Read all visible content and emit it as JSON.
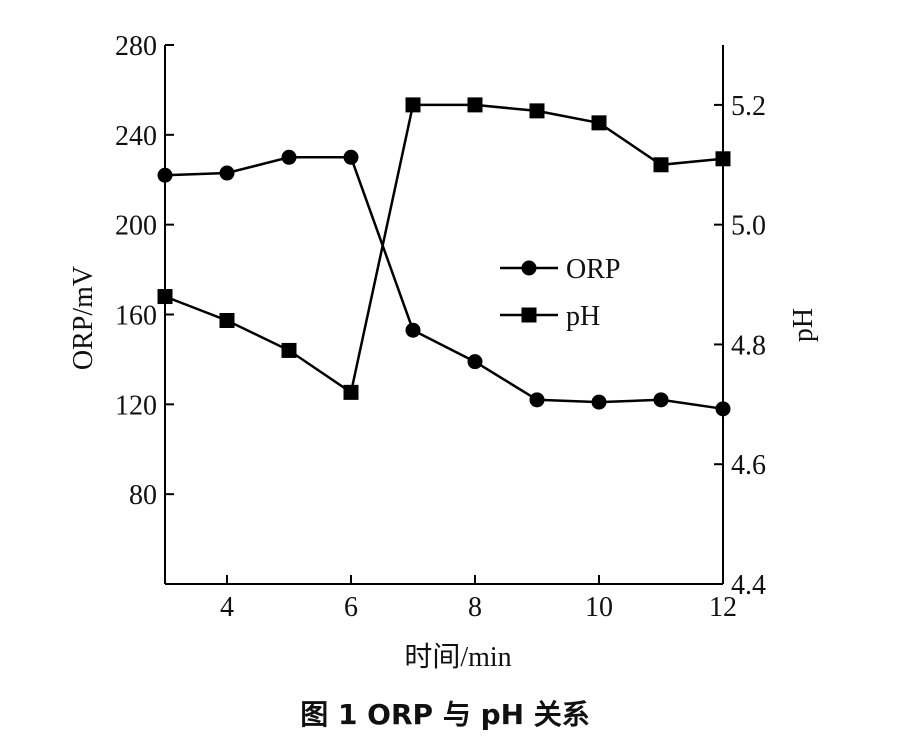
{
  "chart_data": {
    "type": "line",
    "caption": "图 1   ORP 与 pH 关系",
    "xlabel": "时间/min",
    "ylabel_left": "ORP/mV",
    "ylabel_right": "pH",
    "xlim": [
      3,
      12
    ],
    "ylim_left": [
      40,
      280
    ],
    "ylim_right": [
      4.4,
      5.3
    ],
    "x_ticks": [
      4,
      6,
      8,
      10,
      12
    ],
    "y_ticks_left": [
      80,
      120,
      160,
      200,
      240,
      280
    ],
    "y_ticks_right": [
      4.4,
      4.6,
      4.8,
      5.0,
      5.2
    ],
    "y_tick_labels_right": [
      "4.4",
      "4.6",
      "4.8",
      "5.0",
      "5.2"
    ],
    "grid": false,
    "legend_position": "center-right",
    "series": [
      {
        "name": "ORP",
        "axis": "left",
        "marker": "circle",
        "x": [
          3,
          4,
          5,
          6,
          7,
          8,
          9,
          10,
          11,
          12
        ],
        "values": [
          222,
          223,
          230,
          230,
          153,
          139,
          122,
          121,
          122,
          118
        ]
      },
      {
        "name": "pH",
        "axis": "right",
        "marker": "square",
        "x": [
          3,
          4,
          5,
          6,
          7,
          8,
          9,
          10,
          11,
          12
        ],
        "values": [
          4.88,
          4.84,
          4.79,
          4.72,
          5.2,
          5.2,
          5.19,
          5.17,
          5.1,
          5.11
        ]
      }
    ]
  }
}
